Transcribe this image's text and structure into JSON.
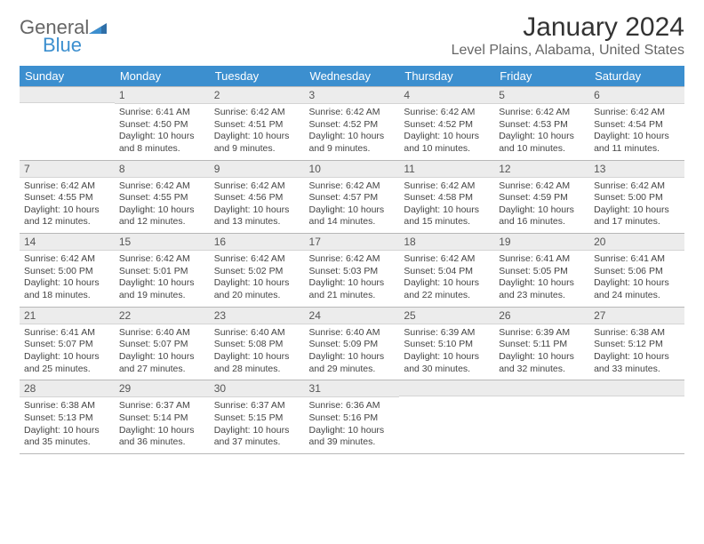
{
  "brand": {
    "line1": "General",
    "line2": "Blue"
  },
  "title": "January 2024",
  "location": "Level Plains, Alabama, United States",
  "colors": {
    "accent": "#3c8fcf",
    "header_text": "#ffffff",
    "band": "#ececec",
    "rule": "#b8b8b8",
    "text": "#444444"
  },
  "day_headers": [
    "Sunday",
    "Monday",
    "Tuesday",
    "Wednesday",
    "Thursday",
    "Friday",
    "Saturday"
  ],
  "weeks": [
    [
      null,
      {
        "n": "1",
        "sr": "6:41 AM",
        "ss": "4:50 PM",
        "dl": "10 hours and 8 minutes."
      },
      {
        "n": "2",
        "sr": "6:42 AM",
        "ss": "4:51 PM",
        "dl": "10 hours and 9 minutes."
      },
      {
        "n": "3",
        "sr": "6:42 AM",
        "ss": "4:52 PM",
        "dl": "10 hours and 9 minutes."
      },
      {
        "n": "4",
        "sr": "6:42 AM",
        "ss": "4:52 PM",
        "dl": "10 hours and 10 minutes."
      },
      {
        "n": "5",
        "sr": "6:42 AM",
        "ss": "4:53 PM",
        "dl": "10 hours and 10 minutes."
      },
      {
        "n": "6",
        "sr": "6:42 AM",
        "ss": "4:54 PM",
        "dl": "10 hours and 11 minutes."
      }
    ],
    [
      {
        "n": "7",
        "sr": "6:42 AM",
        "ss": "4:55 PM",
        "dl": "10 hours and 12 minutes."
      },
      {
        "n": "8",
        "sr": "6:42 AM",
        "ss": "4:55 PM",
        "dl": "10 hours and 12 minutes."
      },
      {
        "n": "9",
        "sr": "6:42 AM",
        "ss": "4:56 PM",
        "dl": "10 hours and 13 minutes."
      },
      {
        "n": "10",
        "sr": "6:42 AM",
        "ss": "4:57 PM",
        "dl": "10 hours and 14 minutes."
      },
      {
        "n": "11",
        "sr": "6:42 AM",
        "ss": "4:58 PM",
        "dl": "10 hours and 15 minutes."
      },
      {
        "n": "12",
        "sr": "6:42 AM",
        "ss": "4:59 PM",
        "dl": "10 hours and 16 minutes."
      },
      {
        "n": "13",
        "sr": "6:42 AM",
        "ss": "5:00 PM",
        "dl": "10 hours and 17 minutes."
      }
    ],
    [
      {
        "n": "14",
        "sr": "6:42 AM",
        "ss": "5:00 PM",
        "dl": "10 hours and 18 minutes."
      },
      {
        "n": "15",
        "sr": "6:42 AM",
        "ss": "5:01 PM",
        "dl": "10 hours and 19 minutes."
      },
      {
        "n": "16",
        "sr": "6:42 AM",
        "ss": "5:02 PM",
        "dl": "10 hours and 20 minutes."
      },
      {
        "n": "17",
        "sr": "6:42 AM",
        "ss": "5:03 PM",
        "dl": "10 hours and 21 minutes."
      },
      {
        "n": "18",
        "sr": "6:42 AM",
        "ss": "5:04 PM",
        "dl": "10 hours and 22 minutes."
      },
      {
        "n": "19",
        "sr": "6:41 AM",
        "ss": "5:05 PM",
        "dl": "10 hours and 23 minutes."
      },
      {
        "n": "20",
        "sr": "6:41 AM",
        "ss": "5:06 PM",
        "dl": "10 hours and 24 minutes."
      }
    ],
    [
      {
        "n": "21",
        "sr": "6:41 AM",
        "ss": "5:07 PM",
        "dl": "10 hours and 25 minutes."
      },
      {
        "n": "22",
        "sr": "6:40 AM",
        "ss": "5:07 PM",
        "dl": "10 hours and 27 minutes."
      },
      {
        "n": "23",
        "sr": "6:40 AM",
        "ss": "5:08 PM",
        "dl": "10 hours and 28 minutes."
      },
      {
        "n": "24",
        "sr": "6:40 AM",
        "ss": "5:09 PM",
        "dl": "10 hours and 29 minutes."
      },
      {
        "n": "25",
        "sr": "6:39 AM",
        "ss": "5:10 PM",
        "dl": "10 hours and 30 minutes."
      },
      {
        "n": "26",
        "sr": "6:39 AM",
        "ss": "5:11 PM",
        "dl": "10 hours and 32 minutes."
      },
      {
        "n": "27",
        "sr": "6:38 AM",
        "ss": "5:12 PM",
        "dl": "10 hours and 33 minutes."
      }
    ],
    [
      {
        "n": "28",
        "sr": "6:38 AM",
        "ss": "5:13 PM",
        "dl": "10 hours and 35 minutes."
      },
      {
        "n": "29",
        "sr": "6:37 AM",
        "ss": "5:14 PM",
        "dl": "10 hours and 36 minutes."
      },
      {
        "n": "30",
        "sr": "6:37 AM",
        "ss": "5:15 PM",
        "dl": "10 hours and 37 minutes."
      },
      {
        "n": "31",
        "sr": "6:36 AM",
        "ss": "5:16 PM",
        "dl": "10 hours and 39 minutes."
      },
      null,
      null,
      null
    ]
  ],
  "labels": {
    "sunrise": "Sunrise: ",
    "sunset": "Sunset: ",
    "daylight": "Daylight: "
  }
}
